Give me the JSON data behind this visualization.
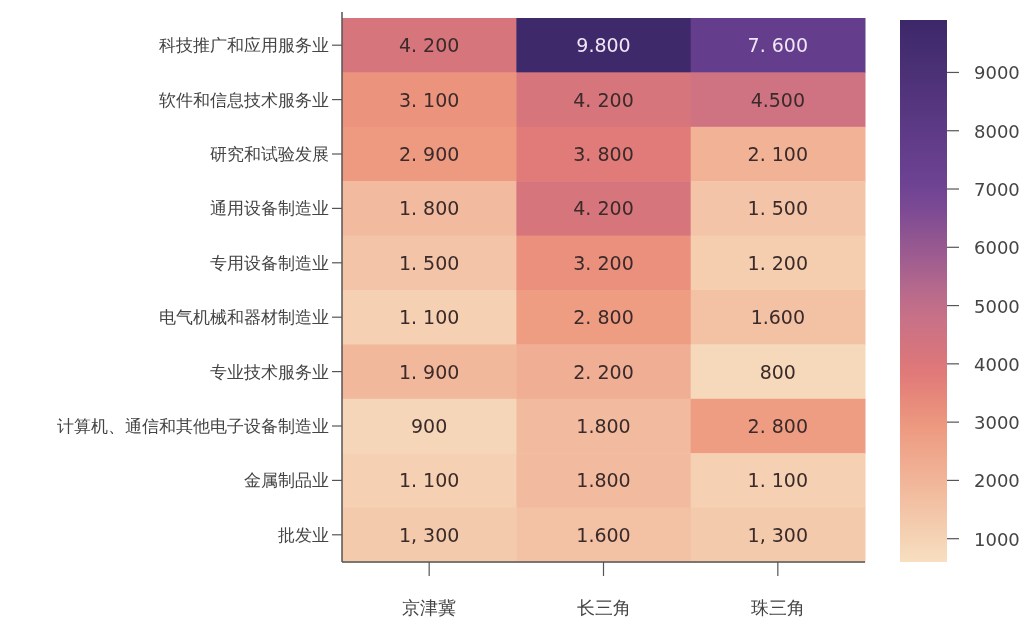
{
  "chart_data": {
    "type": "heatmap",
    "categories": [
      "京津冀",
      "长三角",
      "珠三角"
    ],
    "y_categories": [
      "科技推广和应用服务业",
      "软件和信息技术服务业",
      "研究和试验发展",
      "通用设备制造业",
      "专用设备制造业",
      "电气机械和器材制造业",
      "专业技术服务业",
      "计算机、通信和其他电子设备制造业",
      "金属制品业",
      "批发业"
    ],
    "cells": [
      [
        4200,
        9800,
        7600
      ],
      [
        3100,
        4200,
        4500
      ],
      [
        2900,
        3800,
        2100
      ],
      [
        1800,
        4200,
        1500
      ],
      [
        1500,
        3200,
        1200
      ],
      [
        1100,
        2800,
        1600
      ],
      [
        1900,
        2200,
        800
      ],
      [
        900,
        1800,
        2800
      ],
      [
        1100,
        1800,
        1100
      ],
      [
        1300,
        1600,
        1300
      ]
    ],
    "cell_labels": [
      [
        "4. 200",
        "9.800",
        "7. 600"
      ],
      [
        "3. 100",
        "4. 200",
        "4.500"
      ],
      [
        "2. 900",
        "3. 800",
        "2. 100"
      ],
      [
        "1. 800",
        "4. 200",
        "1. 500"
      ],
      [
        "1. 500",
        "3. 200",
        "1. 200"
      ],
      [
        "1. 100",
        "2. 800",
        "1.600"
      ],
      [
        "1. 900",
        "2. 200",
        "800"
      ],
      [
        "900",
        "1.800",
        "2. 800"
      ],
      [
        "1. 100",
        "1.800",
        "1. 100"
      ],
      [
        "1, 300",
        "1.600",
        "1, 300"
      ]
    ],
    "clim": [
      600,
      9900
    ],
    "cticks": [
      1000,
      2000,
      3000,
      4000,
      5000,
      6000,
      7000,
      8000,
      9000
    ]
  }
}
